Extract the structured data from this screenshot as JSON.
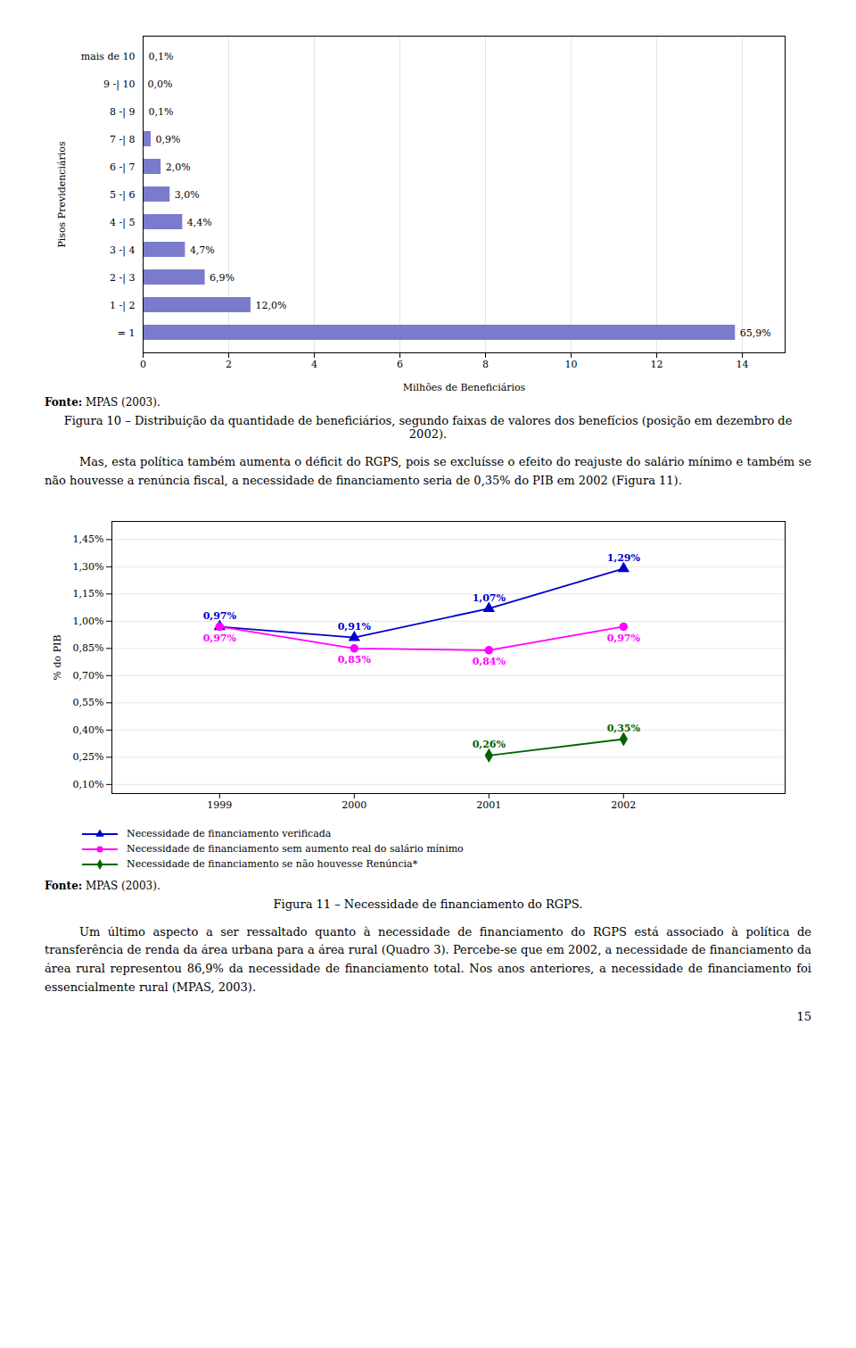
{
  "chart_data": [
    {
      "type": "bar",
      "title": "Figura 10 – Distribuição da quantidade de beneficiários, segundo faixas de valores dos benefícios (posição em dezembro de 2002).",
      "source": "Fonte: MPAS (2003).",
      "text": "Mas, esta política também aumenta o déficit do RGPS, pois se excluísse o efeito do reajuste do salário mínimo e também se não houvesse a renúncia fiscal, a necessidade de financiamento seria de 0,35% do PIB em 2002 (Figura 11).",
      "orientation": "horizontal",
      "categories": [
        "= 1",
        "1 -| 2",
        "2 -| 3",
        "3 -| 4",
        "4 -| 5",
        "5 -| 6",
        "6 -| 7",
        "7 -| 8",
        "8 -| 9",
        "9 -| 10",
        "mais de 10"
      ],
      "values": [
        13.839,
        2.52,
        1.449,
        0.987,
        0.924,
        0.63,
        0.42,
        0.189,
        0.021,
        0.001,
        0.021
      ],
      "value_labels": [
        "65,9%",
        "12,0%",
        "6,9%",
        "4,7%",
        "4,4%",
        "3,0%",
        "2,0%",
        "0,9%",
        "0,1%",
        "0,0%",
        "0,1%"
      ],
      "color": "#7b7bcd",
      "x_label": "Milhões de Beneficiários",
      "y_label": "Pisos Previdenciários",
      "xlim": [
        0,
        15
      ],
      "xticks": [
        0,
        2,
        4,
        6,
        8,
        10,
        12,
        14
      ],
      "grid": true
    },
    {
      "type": "line",
      "title": "Figura 11 – Necessidade de financiamento do RGPS.",
      "source": "Fonte: MPAS (2003).",
      "text": "Um último aspecto a ser ressaltado quanto à necessidade de financiamento do RGPS está associado à política de transferência de renda da área urbana para a área rural (Quadro 3). Percebe-se que em 2002, a necessidade de financiamento da área rural representou 86,9% da necessidade de financiamento total. Nos anos anteriores, a necessidade de financiamento foi essencialmente rural (MPAS, 2003).",
      "x": [
        1999,
        2000,
        2001,
        2002
      ],
      "series": [
        {
          "name": "Necessidade de financiamento verificada",
          "color": "#0000cc",
          "marker": "triangle",
          "values": [
            0.97,
            0.91,
            1.07,
            1.29
          ],
          "value_labels": [
            "0,97%",
            "0,91%",
            "1,07%",
            "1,29%"
          ]
        },
        {
          "name": "Necessidade de financiamento sem aumento real do salário mínimo",
          "color": "#ff00ff",
          "marker": "circle",
          "values": [
            0.97,
            0.85,
            0.84,
            0.97
          ],
          "value_labels": [
            "0,97%",
            "0,85%",
            "0,84%",
            "0,97%"
          ]
        },
        {
          "name": "Necessidade de financiamento se não houvesse Renúncia*",
          "color": "#006400",
          "marker": "diamond",
          "values": [
            null,
            null,
            0.26,
            0.35
          ],
          "value_labels": [
            null,
            null,
            "0,26%",
            "0,35%"
          ]
        }
      ],
      "y_label": "% do PIB",
      "xlim": [
        1998.2,
        2003.2
      ],
      "xticks": [
        1999,
        2000,
        2001,
        2002
      ],
      "ylim": [
        0.05,
        1.55
      ],
      "yticks": [
        {
          "value": 0.1,
          "label": "0,10%"
        },
        {
          "value": 0.25,
          "label": "0,25%"
        },
        {
          "value": 0.4,
          "label": "0,40%"
        },
        {
          "value": 0.55,
          "label": "0,55%"
        },
        {
          "value": 0.7,
          "label": "0,70%"
        },
        {
          "value": 0.85,
          "label": "0,85%"
        },
        {
          "value": 1.0,
          "label": "1,00%"
        },
        {
          "value": 1.15,
          "label": "1,15%"
        },
        {
          "value": 1.3,
          "label": "1,30%"
        },
        {
          "value": 1.45,
          "label": "1,45%"
        }
      ],
      "grid": true,
      "legend": "bottom"
    }
  ],
  "page_number": "15"
}
